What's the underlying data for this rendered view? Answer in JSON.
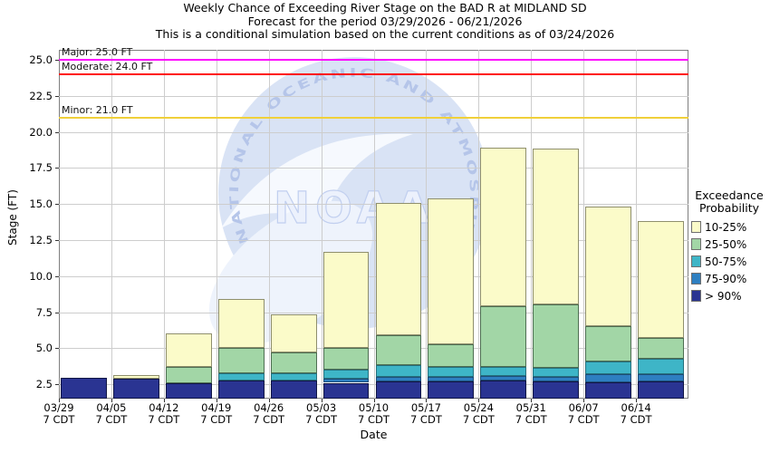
{
  "title": {
    "line1": "Weekly Chance of Exceeding River Stage on the BAD R at MIDLAND SD",
    "line2": "Forecast for the period 03/29/2026 - 06/21/2026",
    "line3": "This is a conditional simulation based on the current conditions as of 03/24/2026"
  },
  "watermark": {
    "arc_text": "NATIONAL OCEANIC AND ATMOSPHERIC ADM",
    "logo_text": "NOAA"
  },
  "chart_data": {
    "type": "bar",
    "stacked": true,
    "title": "Weekly Chance of Exceeding River Stage on the BAD R at MIDLAND SD",
    "subtitle": "Forecast for the period 03/29/2026 - 06/21/2026",
    "note": "This is a conditional simulation based on the current conditions as of 03/24/2026",
    "xlabel": "Date",
    "ylabel": "Stage (FT)",
    "ylim": [
      1.5,
      25.7
    ],
    "y_ticks": [
      2.5,
      5.0,
      7.5,
      10.0,
      12.5,
      15.0,
      17.5,
      20.0,
      22.5,
      25.0
    ],
    "grid": true,
    "categories": [
      "03/29",
      "04/05",
      "04/12",
      "04/19",
      "04/26",
      "05/03",
      "05/10",
      "05/17",
      "05/24",
      "05/31",
      "06/07",
      "06/14"
    ],
    "x_tick_time": "7 CDT",
    "series": [
      {
        "name": "> 90%",
        "color": "#2A3492",
        "border": "#101544",
        "tops": [
          2.95,
          2.9,
          2.55,
          2.75,
          2.75,
          2.6,
          2.7,
          2.7,
          2.75,
          2.7,
          2.65,
          2.7
        ]
      },
      {
        "name": "75-90%",
        "color": "#2E7FC1",
        "border": "#1d4e78",
        "tops": [
          2.95,
          2.9,
          2.55,
          2.75,
          2.75,
          2.9,
          3.0,
          3.0,
          3.1,
          3.0,
          3.2,
          3.2
        ]
      },
      {
        "name": "50-75%",
        "color": "#3EB5C7",
        "border": "#26707c",
        "tops": [
          2.95,
          2.9,
          2.55,
          3.25,
          3.25,
          3.5,
          3.8,
          3.7,
          3.7,
          3.65,
          4.1,
          4.25
        ]
      },
      {
        "name": "25-50%",
        "color": "#A2D6A6",
        "border": "#4e6e52",
        "tops": [
          2.95,
          2.9,
          3.7,
          5.05,
          4.7,
          5.0,
          5.9,
          5.25,
          7.9,
          8.05,
          6.5,
          5.7
        ]
      },
      {
        "name": "10-25%",
        "color": "#FBFBC9",
        "border": "#8f8f6d",
        "tops": [
          2.95,
          3.15,
          6.0,
          8.4,
          7.35,
          11.7,
          15.05,
          15.4,
          18.9,
          18.85,
          14.85,
          13.8
        ]
      }
    ],
    "thresholds": [
      {
        "label": "Major: 25.0 FT",
        "value": 25.0,
        "color": "#ff00ff"
      },
      {
        "label": "Moderate: 24.0 FT",
        "value": 24.0,
        "color": "#ff0e0e"
      },
      {
        "label": "Minor: 21.0 FT",
        "value": 21.0,
        "color": "#f0d03a"
      }
    ],
    "legend": {
      "position": "right",
      "title_lines": [
        "Exceedance",
        "Probability"
      ],
      "items": [
        {
          "label": "10-25%",
          "color": "#FBFBC9"
        },
        {
          "label": "25-50%",
          "color": "#A2D6A6"
        },
        {
          "label": "50-75%",
          "color": "#3EB5C7"
        },
        {
          "label": "75-90%",
          "color": "#2E7FC1"
        },
        {
          "label": "> 90%",
          "color": "#2A3492"
        }
      ]
    }
  }
}
